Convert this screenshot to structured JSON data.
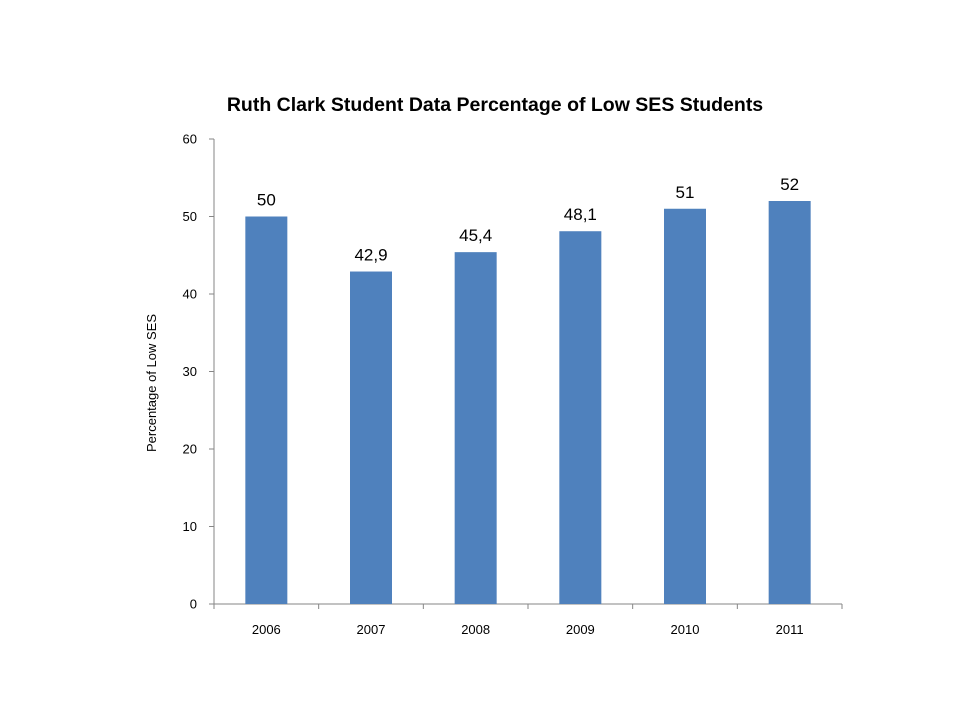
{
  "chart_data": {
    "type": "bar",
    "title": "Ruth Clark Student Data Percentage of Low SES Students",
    "xlabel": "",
    "ylabel": "Percentage of Low SES",
    "categories": [
      "2006",
      "2007",
      "2008",
      "2009",
      "2010",
      "2011"
    ],
    "values": [
      50,
      42.9,
      45.4,
      48.1,
      51,
      52
    ],
    "data_labels": [
      "50",
      "42,9",
      "45,4",
      "48,1",
      "51",
      "52"
    ],
    "ylim": [
      0,
      60
    ],
    "yticks": [
      0,
      10,
      20,
      30,
      40,
      50,
      60
    ],
    "bar_color": "#4F81BD",
    "grid": false,
    "legend": "none"
  }
}
